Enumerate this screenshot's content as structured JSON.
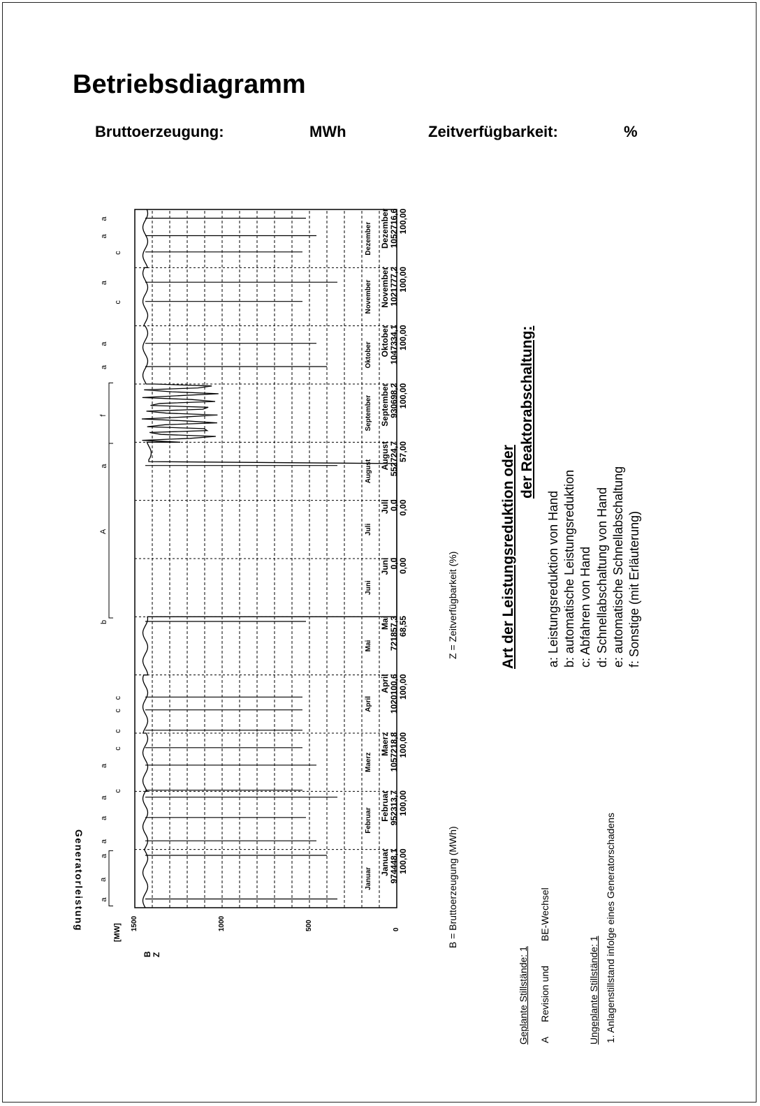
{
  "header": {
    "title": "Betriebsdiagramm",
    "production_label": "Bruttoerzeugung:",
    "production_unit": "MWh",
    "availability_label": "Zeitverfügbarkeit:",
    "availability_unit": "%"
  },
  "chart_data": {
    "type": "line",
    "ylabel": "Generatorleistung",
    "yunit": "[MW]",
    "ylim": [
      0,
      1500
    ],
    "yticks": [
      "0",
      "500",
      "1000",
      "1500"
    ],
    "grid": true,
    "categories": [
      "Januar",
      "Februar",
      "Maerz",
      "April",
      "Mai",
      "Juni",
      "Juli",
      "August",
      "September",
      "Oktober",
      "November",
      "Dezember"
    ],
    "month_names": [
      "Januar",
      "Februar",
      "Maerz",
      "April",
      "Mai",
      "Juni",
      "Juli",
      "August",
      "September",
      "Oktober",
      "November",
      "Dezember"
    ],
    "row_labels": {
      "b": "B",
      "z": "Z"
    },
    "bruttoerzeugung": [
      "974448,1",
      "952313,7",
      "1057218,8",
      "1020100,6",
      "721857,3",
      "0,0",
      "0,0",
      "552724,7",
      "930698,2",
      "1047334,1",
      "1021777,2",
      "1052716,6"
    ],
    "zeitverfuegbarkeit": [
      "100,00",
      "100,00",
      "100,00",
      "100,00",
      "68,55",
      "0,00",
      "0,00",
      "57,00",
      "100,00",
      "100,00",
      "100,00",
      "100,00"
    ],
    "series": [
      {
        "values": [
          1440,
          1440,
          1440,
          1440,
          1440,
          0,
          0,
          1420,
          1300,
          1440,
          1440,
          1440
        ]
      }
    ],
    "events": [
      {
        "label": "a",
        "month": 0.15
      },
      {
        "label": "a",
        "month": 0.9
      },
      {
        "label": "a",
        "month": 1.15
      },
      {
        "label": "a",
        "month": 1.55
      },
      {
        "label": "a",
        "month": 1.9
      },
      {
        "label": "c",
        "month": 2.02
      },
      {
        "label": "a",
        "month": 2.45
      },
      {
        "label": "c",
        "month": 2.75
      },
      {
        "label": "c",
        "month": 3.05
      },
      {
        "label": "c",
        "month": 3.4
      },
      {
        "label": "c",
        "month": 3.62
      },
      {
        "label": "b",
        "month": 4.92
      },
      {
        "label": "a",
        "month": 7.6
      },
      {
        "label": "a",
        "month": 9.3
      },
      {
        "label": "a",
        "month": 9.7
      },
      {
        "label": "c",
        "month": 10.42
      },
      {
        "label": "a",
        "month": 10.75
      },
      {
        "label": "c",
        "month": 11.27
      },
      {
        "label": "a",
        "month": 11.55
      },
      {
        "label": "a",
        "month": 11.85
      }
    ],
    "outage_labels": [
      {
        "label": "a",
        "start": 0.03,
        "end": 0.98
      },
      {
        "label": "A",
        "start": 4.98,
        "end": 7.98
      },
      {
        "label": "f",
        "start": 7.98,
        "end": 9.02
      }
    ]
  },
  "legend": {
    "b_text": "B = Bruttoerzeugung (MWh)",
    "z_text": "Z = Zeitverfügbarkeit (%)"
  },
  "reduction": {
    "title_line1": "Art der Leistungsreduktion oder",
    "title_line2": "der Reaktorabschaltung:",
    "items": [
      "a: Leistungsreduktion von Hand",
      "b: automatische Leistungsreduktion",
      "c: Abfahren von Hand",
      "d: Schnellabschaltung von Hand",
      "e: automatische Schnellabschaltung",
      "f: Sonstige (mit Erläuterung)"
    ]
  },
  "stillstaende": {
    "planned_heading": "Geplante Stillstände: 1",
    "planned_items": [
      {
        "letter": "A",
        "text": "Revision und",
        "text2": "BE-Wechsel"
      }
    ],
    "unplanned_heading": "Ungeplante Stillstände: 1",
    "unplanned_items": [
      "1. Anlagenstillstand infolge eines Generatorschadens"
    ]
  }
}
